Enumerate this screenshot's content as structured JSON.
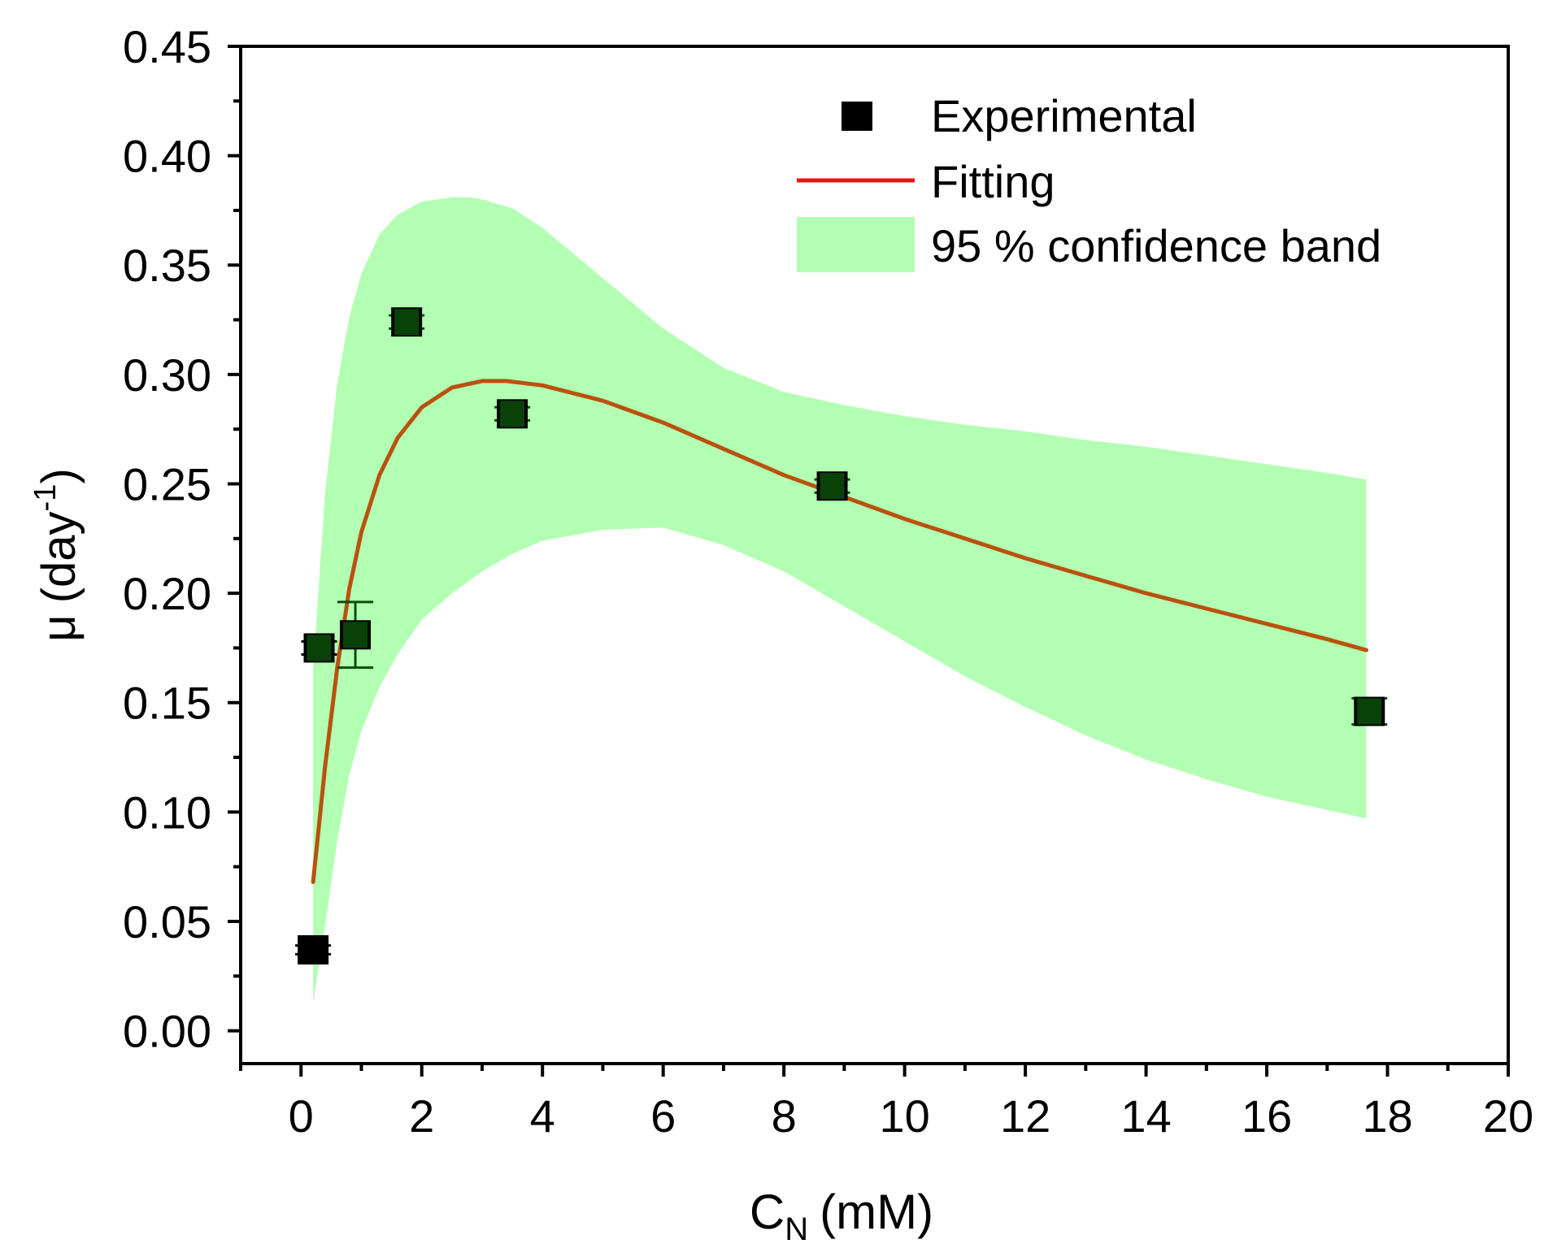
{
  "chart_data": {
    "type": "scatter",
    "xlabel": "C",
    "xlabel_subscript": "N",
    "xlabel_unit": "(mM)",
    "ylabel_symbol": "μ",
    "ylabel_unit_base": "(day",
    "ylabel_unit_exp": "-1",
    "ylabel_unit_close": ")",
    "xlim": [
      -1,
      20
    ],
    "ylim": [
      -0.015,
      0.45
    ],
    "xticks": [
      0,
      2,
      4,
      6,
      8,
      10,
      12,
      14,
      16,
      18,
      20
    ],
    "xtick_labels": [
      "0",
      "2",
      "4",
      "6",
      "8",
      "10",
      "12",
      "14",
      "16",
      "18",
      "20"
    ],
    "yticks": [
      0.0,
      0.05,
      0.1,
      0.15,
      0.2,
      0.25,
      0.3,
      0.35,
      0.4,
      0.45
    ],
    "ytick_labels": [
      "0.00",
      "0.05",
      "0.10",
      "0.15",
      "0.20",
      "0.25",
      "0.30",
      "0.35",
      "0.40",
      "0.45"
    ],
    "grid": false,
    "legend": {
      "position": "top-right",
      "items": [
        {
          "label": "Experimental",
          "kind": "marker",
          "color": "#000000"
        },
        {
          "label": "Fitting",
          "kind": "line",
          "color": "#e8140c"
        },
        {
          "label": "95 % confidence band",
          "kind": "patch",
          "color": "#b3ffb3"
        }
      ]
    },
    "series": [
      {
        "name": "Experimental",
        "kind": "scatter",
        "color": "#000000",
        "overlay_color": "#0b4d0b",
        "points": [
          {
            "x": 0.2,
            "y": 0.037,
            "err": 0.002
          },
          {
            "x": 0.3,
            "y": 0.175,
            "err": 0.003
          },
          {
            "x": 0.9,
            "y": 0.181,
            "err": 0.015
          },
          {
            "x": 1.75,
            "y": 0.324,
            "err": 0.003
          },
          {
            "x": 3.5,
            "y": 0.282,
            "err": 0.003
          },
          {
            "x": 8.8,
            "y": 0.249,
            "err": 0.003
          },
          {
            "x": 17.7,
            "y": 0.146,
            "err": 0.006
          }
        ]
      },
      {
        "name": "Fitting",
        "kind": "line",
        "color": "#e8140c",
        "overlay_color": "#b8520e",
        "x": [
          0.2,
          0.4,
          0.6,
          0.8,
          1.0,
          1.3,
          1.6,
          2.0,
          2.5,
          3.0,
          3.4,
          4.0,
          5.0,
          6.0,
          7.0,
          8.0,
          9.0,
          10.0,
          11.0,
          12.0,
          13.0,
          14.0,
          15.0,
          16.0,
          17.0,
          17.65
        ],
        "y": [
          0.068,
          0.121,
          0.166,
          0.202,
          0.228,
          0.254,
          0.271,
          0.285,
          0.294,
          0.297,
          0.297,
          0.295,
          0.288,
          0.278,
          0.266,
          0.254,
          0.244,
          0.234,
          0.225,
          0.216,
          0.208,
          0.2,
          0.193,
          0.186,
          0.179,
          0.174
        ]
      },
      {
        "name": "95 % confidence band",
        "kind": "band",
        "color": "#b3ffb3",
        "x": [
          0.2,
          0.4,
          0.6,
          0.8,
          1.0,
          1.3,
          1.6,
          2.0,
          2.5,
          2.8,
          3.0,
          3.5,
          4.0,
          5.0,
          6.0,
          7.0,
          8.0,
          9.0,
          10.0,
          11.0,
          12.0,
          13.0,
          14.0,
          15.0,
          16.0,
          17.0,
          17.65
        ],
        "upper": [
          0.165,
          0.246,
          0.296,
          0.326,
          0.346,
          0.364,
          0.373,
          0.379,
          0.381,
          0.381,
          0.38,
          0.376,
          0.367,
          0.344,
          0.321,
          0.303,
          0.292,
          0.286,
          0.281,
          0.277,
          0.274,
          0.27,
          0.267,
          0.263,
          0.259,
          0.255,
          0.252
        ],
        "lower": [
          0.013,
          0.048,
          0.087,
          0.117,
          0.137,
          0.157,
          0.172,
          0.188,
          0.2,
          0.206,
          0.21,
          0.218,
          0.224,
          0.229,
          0.23,
          0.222,
          0.21,
          0.194,
          0.178,
          0.162,
          0.148,
          0.135,
          0.124,
          0.115,
          0.107,
          0.101,
          0.097
        ],
        "floor": 0.013
      }
    ]
  }
}
